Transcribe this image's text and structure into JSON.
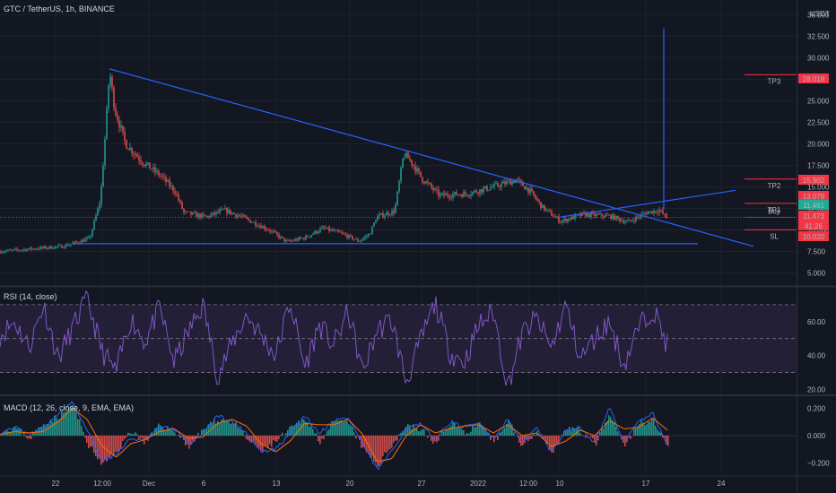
{
  "header": {
    "title": "GTC / TetherUS, 1h, BINANCE",
    "currency": "USDT",
    "rsi_title": "RSI (14, close)",
    "macd_title": "MACD (12, 26, close, 9, EMA, EMA)"
  },
  "colors": {
    "background": "#131722",
    "grid": "#1e222d",
    "bull": "#26a69a",
    "bear": "#ef5350",
    "trendline": "#2962ff",
    "rsi_line": "#7e57c2",
    "rsi_band": "#2a2440",
    "macd_line": "#2962ff",
    "signal_line": "#ff6d00",
    "hist_pos": "#26a69a",
    "hist_neg": "#ef5350",
    "level_red": "#f23645",
    "level_green": "#22ab94",
    "level_grey": "#434651"
  },
  "chart_data": [
    {
      "type": "candlestick",
      "title": "GTC / TetherUS, 1h, BINANCE",
      "ylabel": "USDT",
      "ylim": [
        3.6,
        36.7
      ],
      "yticks": [
        "35.000",
        "32.500",
        "30.000",
        "27.500",
        "25.000",
        "22.500",
        "20.000",
        "17.500",
        "15.000",
        "12.500",
        "10.000",
        "7.500",
        "5.000"
      ],
      "xticks": [
        "22",
        "12:00",
        "Dec",
        "6",
        "13",
        "20",
        "27",
        "2022",
        "12:00",
        "10",
        "17",
        "24"
      ],
      "price_path": [
        [
          0,
          7.5
        ],
        [
          70,
          8.1
        ],
        [
          100,
          9.0
        ],
        [
          112,
          13.5
        ],
        [
          118,
          22
        ],
        [
          122,
          28.5
        ],
        [
          128,
          24
        ],
        [
          140,
          20
        ],
        [
          160,
          17.8
        ],
        [
          180,
          16.2
        ],
        [
          195,
          14.5
        ],
        [
          205,
          12.0
        ],
        [
          230,
          11.5
        ],
        [
          250,
          12.3
        ],
        [
          270,
          11.5
        ],
        [
          300,
          10.0
        ],
        [
          320,
          8.6
        ],
        [
          340,
          9.1
        ],
        [
          360,
          10.2
        ],
        [
          380,
          9.6
        ],
        [
          400,
          8.7
        ],
        [
          412,
          9.5
        ],
        [
          420,
          11.5
        ],
        [
          440,
          12.2
        ],
        [
          450,
          18.8
        ],
        [
          458,
          18.0
        ],
        [
          470,
          16.0
        ],
        [
          490,
          14.0
        ],
        [
          520,
          14.2
        ],
        [
          550,
          15.0
        ],
        [
          575,
          15.8
        ],
        [
          590,
          14.6
        ],
        [
          605,
          12.6
        ],
        [
          625,
          11.0
        ],
        [
          650,
          11.8
        ],
        [
          680,
          11.6
        ],
        [
          700,
          10.9
        ],
        [
          720,
          12.0
        ],
        [
          735,
          12.3
        ],
        [
          744,
          11.3
        ]
      ],
      "trendlines": [
        {
          "from": [
            122,
            28.7
          ],
          "to": [
            840,
            8.1
          ]
        },
        {
          "from": [
            625,
            11.5
          ],
          "to": [
            820,
            14.6
          ]
        },
        {
          "from": [
            80,
            8.4
          ],
          "to": [
            778,
            8.4
          ]
        },
        {
          "from": [
            740,
            12.4
          ],
          "to": [
            740,
            33.4
          ]
        }
      ],
      "levels": [
        {
          "label": "TP3",
          "value": 28.018,
          "price_label": "28.018",
          "color": "#f23645"
        },
        {
          "label": "TP2",
          "value": 15.902,
          "price_label": "15.902",
          "color": "#f23645"
        },
        {
          "label": "",
          "value": 13.079,
          "price_label": "13.079",
          "color": "#f23645"
        },
        {
          "label": "TP1",
          "value": 13.079,
          "price_label": "",
          "color": "#f23645"
        },
        {
          "label": "",
          "value": 11.491,
          "price_label": "11.491",
          "color": "#22ab94"
        },
        {
          "label": "Buy",
          "value": 11.473,
          "price_label": "11.473",
          "color": "#434651"
        },
        {
          "label": "",
          "value": 11.473,
          "price_label": "41:26",
          "color": "#434651"
        },
        {
          "label": "SL",
          "value": 10.02,
          "price_label": "10.020",
          "color": "#f23645"
        }
      ]
    },
    {
      "type": "line",
      "title": "RSI (14, close)",
      "ylim": [
        17,
        80
      ],
      "yticks": [
        "60.00",
        "40.00",
        "20.00"
      ],
      "bands": [
        70,
        50,
        30
      ],
      "series": [
        {
          "values": [
            52,
            60,
            45,
            70,
            38,
            56,
            74,
            43,
            30,
            62,
            48,
            68,
            36,
            54,
            70,
            28,
            47,
            64,
            52,
            40,
            72,
            33,
            58,
            46,
            66,
            30,
            55,
            61,
            24,
            49,
            71,
            42,
            36,
            58,
            66,
            22,
            53,
            62,
            44,
            70,
            38,
            50,
            60,
            34,
            56,
            68,
            46
          ]
        }
      ]
    },
    {
      "type": "bar",
      "title": "MACD (12, 26, close, 9, EMA, EMA)",
      "ylim": [
        -0.29,
        0.29
      ],
      "yticks": [
        "0.200",
        "0.000",
        "−0.200"
      ],
      "series": [
        {
          "values": [
            0.03,
            0.06,
            -0.02,
            0.09,
            0.14,
            0.22,
            -0.06,
            -0.21,
            -0.12,
            0.04,
            -0.05,
            0.08,
            0.03,
            -0.08,
            0.05,
            0.12,
            0.1,
            -0.03,
            -0.11,
            -0.04,
            0.05,
            0.13,
            -0.04,
            0.1,
            0.09,
            -0.1,
            -0.22,
            -0.06,
            0.08,
            0.04,
            -0.06,
            0.1,
            0.02,
            0.08,
            -0.05,
            0.11,
            -0.08,
            0.05,
            -0.12,
            0.06,
            0.03,
            -0.06,
            0.15,
            -0.08,
            0.09,
            0.12,
            -0.09
          ]
        },
        {
          "values": [
            0.02,
            0.06,
            0.01,
            0.05,
            0.16,
            0.25,
            0.04,
            -0.18,
            -0.14,
            -0.02,
            -0.04,
            0.06,
            0.05,
            -0.06,
            0.02,
            0.15,
            0.1,
            0.02,
            -0.12,
            -0.1,
            0.01,
            0.15,
            0.02,
            0.11,
            0.13,
            -0.06,
            -0.25,
            -0.12,
            0.06,
            0.08,
            -0.03,
            0.1,
            0.06,
            0.09,
            -0.02,
            0.12,
            -0.06,
            0.06,
            -0.12,
            0.04,
            0.06,
            -0.05,
            0.2,
            -0.04,
            0.1,
            0.16,
            -0.06
          ]
        },
        {
          "values": [
            0.01,
            0.03,
            0.02,
            0.03,
            0.1,
            0.2,
            0.12,
            -0.07,
            -0.16,
            -0.06,
            -0.03,
            0.03,
            0.05,
            -0.02,
            -0.01,
            0.09,
            0.12,
            0.07,
            -0.06,
            -0.12,
            -0.04,
            0.09,
            0.08,
            0.08,
            0.12,
            0.01,
            -0.19,
            -0.17,
            0.0,
            0.08,
            0.02,
            0.05,
            0.07,
            0.08,
            0.02,
            0.08,
            0.0,
            0.02,
            -0.08,
            -0.04,
            0.04,
            0.0,
            0.11,
            0.05,
            0.06,
            0.13,
            0.04
          ]
        }
      ]
    }
  ]
}
